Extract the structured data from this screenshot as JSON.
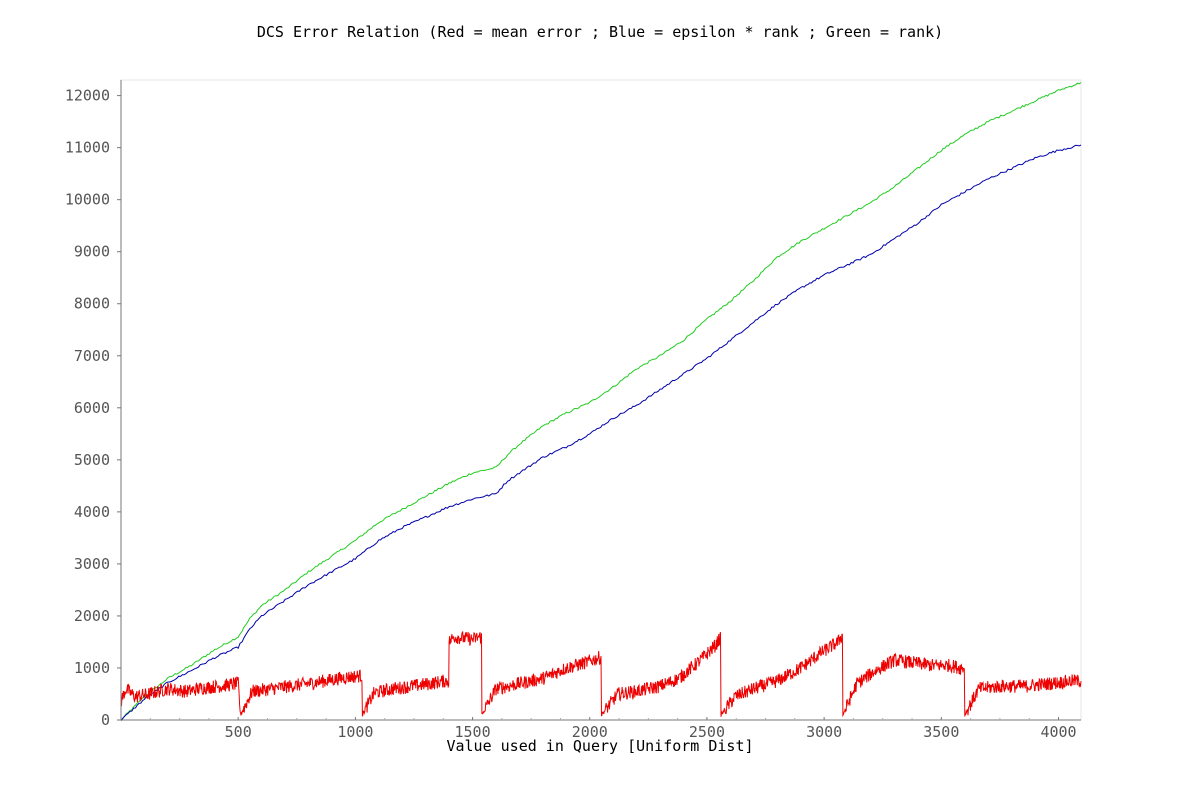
{
  "chart_data": {
    "type": "line",
    "title": "DCS Error Relation (Red = mean error ; Blue = epsilon * rank ; Green = rank)",
    "xlabel": "Value used in Query [Uniform Dist]",
    "ylabel": "",
    "xlim": [
      0,
      4096
    ],
    "ylim": [
      0,
      12300
    ],
    "x_ticks": [
      500,
      1000,
      1500,
      2000,
      2500,
      3000,
      3500,
      4000
    ],
    "y_ticks": [
      0,
      1000,
      2000,
      3000,
      4000,
      5000,
      6000,
      7000,
      8000,
      9000,
      10000,
      11000,
      12000
    ],
    "grid": false,
    "legend": "none",
    "series": [
      {
        "color": "#22cc22",
        "x": [
          0,
          100,
          200,
          300,
          400,
          500,
          550,
          600,
          700,
          800,
          900,
          1000,
          1100,
          1200,
          1300,
          1400,
          1500,
          1600,
          1650,
          1700,
          1800,
          1900,
          2000,
          2100,
          2200,
          2300,
          2400,
          2500,
          2600,
          2700,
          2800,
          2900,
          3000,
          3100,
          3200,
          3300,
          3400,
          3500,
          3600,
          3700,
          3800,
          3900,
          4000,
          4096
        ],
        "values": [
          0,
          450,
          800,
          1050,
          1350,
          1600,
          1950,
          2200,
          2500,
          2850,
          3150,
          3450,
          3800,
          4050,
          4300,
          4550,
          4750,
          4850,
          5100,
          5300,
          5650,
          5900,
          6100,
          6400,
          6750,
          7000,
          7300,
          7700,
          8050,
          8450,
          8900,
          9200,
          9450,
          9700,
          9950,
          10250,
          10600,
          10950,
          11250,
          11500,
          11700,
          11900,
          12100,
          12250
        ]
      },
      {
        "color": "#0000aa",
        "x": [
          0,
          100,
          200,
          300,
          400,
          500,
          550,
          600,
          700,
          800,
          900,
          1000,
          1100,
          1200,
          1300,
          1400,
          1500,
          1600,
          1650,
          1700,
          1800,
          1900,
          2000,
          2100,
          2200,
          2300,
          2400,
          2500,
          2600,
          2700,
          2800,
          2900,
          3000,
          3100,
          3200,
          3300,
          3400,
          3500,
          3600,
          3700,
          3800,
          3900,
          4000,
          4096
        ],
        "values": [
          0,
          400,
          720,
          950,
          1200,
          1400,
          1750,
          2000,
          2300,
          2600,
          2850,
          3100,
          3450,
          3700,
          3900,
          4100,
          4250,
          4350,
          4600,
          4750,
          5050,
          5250,
          5500,
          5800,
          6050,
          6350,
          6650,
          6950,
          7300,
          7650,
          8000,
          8300,
          8550,
          8750,
          8950,
          9250,
          9550,
          9900,
          10150,
          10400,
          10600,
          10800,
          10950,
          11050
        ]
      },
      {
        "color": "#ee0000",
        "x": [
          0,
          20,
          60,
          120,
          200,
          280,
          350,
          420,
          500,
          510,
          560,
          640,
          720,
          800,
          880,
          960,
          1020,
          1030,
          1080,
          1160,
          1240,
          1320,
          1380,
          1400,
          1420,
          1500,
          1530,
          1540,
          1600,
          1700,
          1800,
          1900,
          1980,
          2040,
          2050,
          2120,
          2200,
          2300,
          2380,
          2460,
          2540,
          2550,
          2560,
          2620,
          2700,
          2800,
          2900,
          2990,
          3060,
          3070,
          3080,
          3140,
          3220,
          3300,
          3380,
          3460,
          3540,
          3580,
          3590,
          3600,
          3660,
          3760,
          3860,
          3960,
          4060,
          4096
        ],
        "values": [
          350,
          600,
          450,
          500,
          600,
          550,
          620,
          650,
          700,
          100,
          550,
          600,
          650,
          700,
          760,
          820,
          850,
          100,
          520,
          600,
          650,
          700,
          750,
          1500,
          1600,
          1550,
          1600,
          100,
          600,
          700,
          800,
          1000,
          1100,
          1200,
          100,
          500,
          550,
          650,
          800,
          1100,
          1450,
          1550,
          100,
          450,
          600,
          750,
          1000,
          1300,
          1500,
          1600,
          100,
          700,
          950,
          1150,
          1100,
          1050,
          1050,
          1000,
          1000,
          100,
          600,
          650,
          650,
          700,
          750,
          750
        ]
      }
    ]
  }
}
